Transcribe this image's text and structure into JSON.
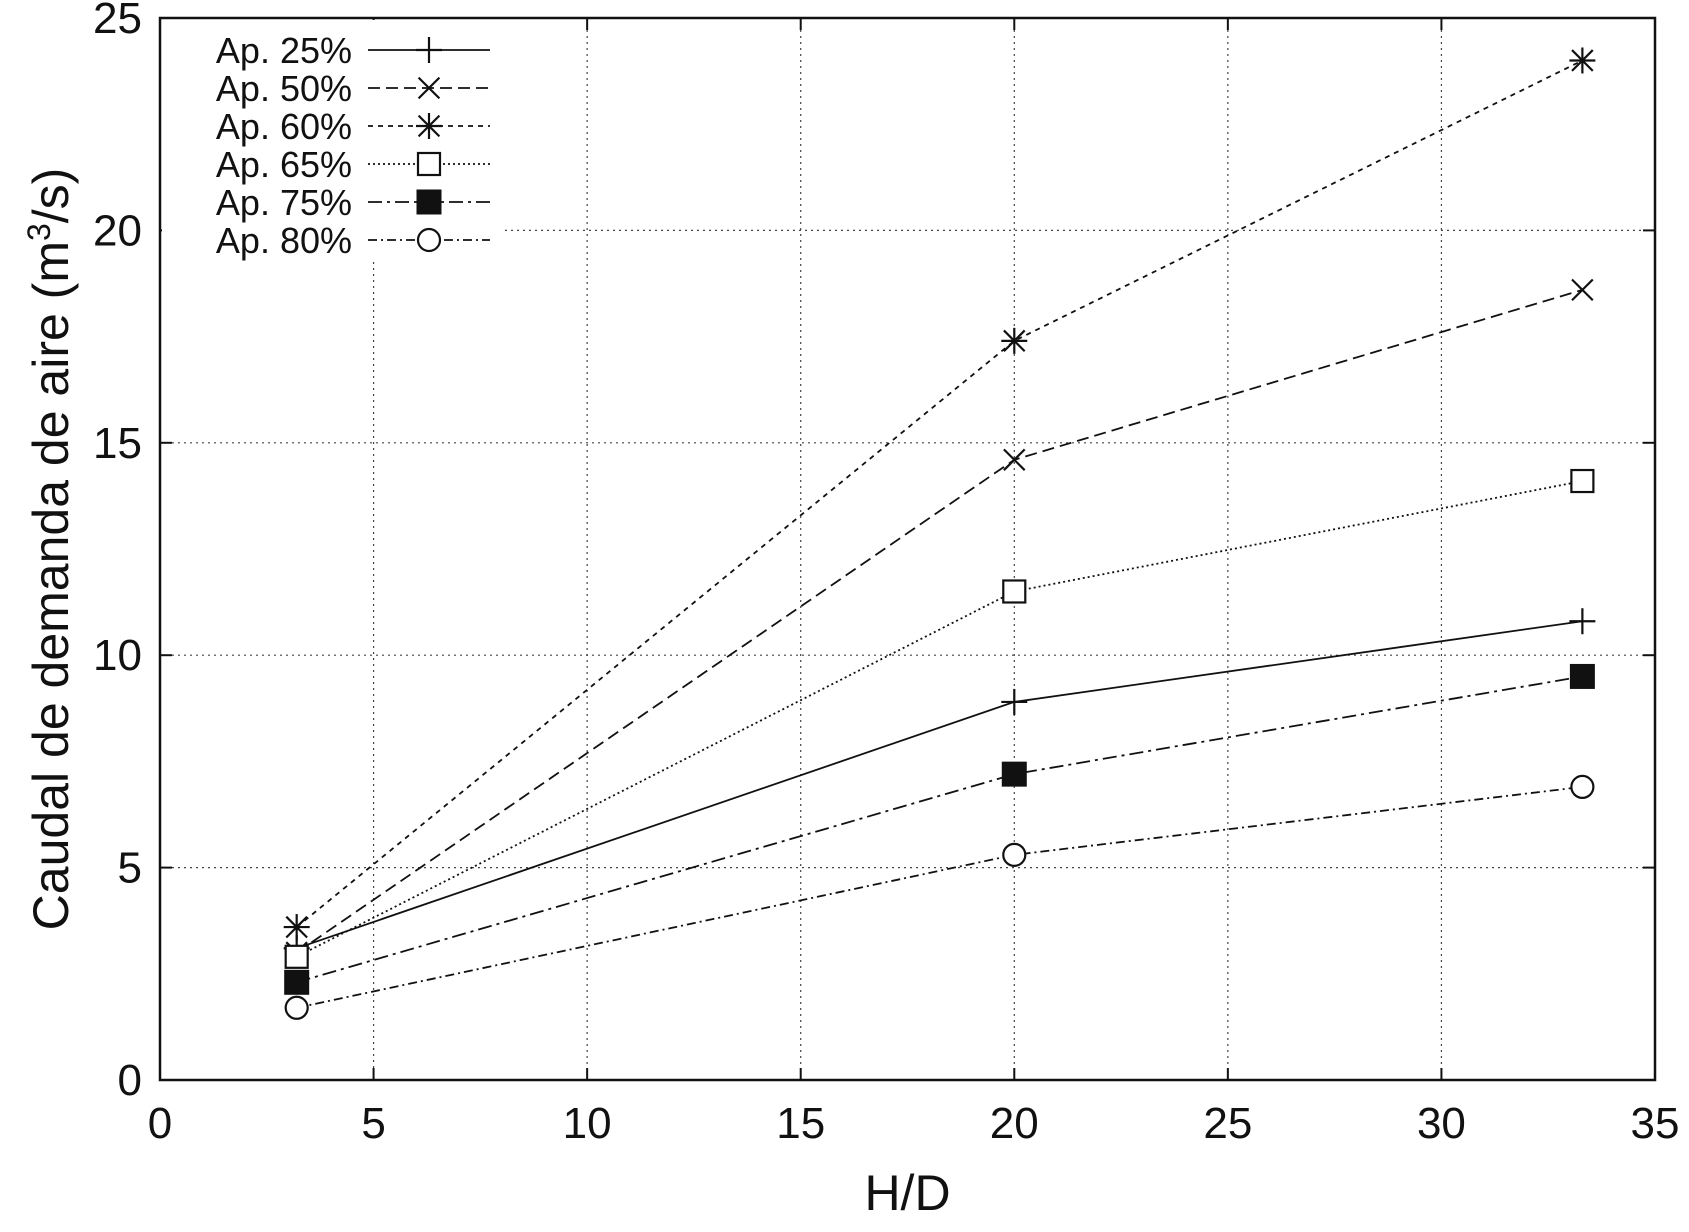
{
  "chart_data": {
    "type": "line",
    "title": "",
    "xlabel": "H/D",
    "ylabel_main": "Caudal de demanda de aire (m",
    "ylabel_sup": "3",
    "ylabel_tail": "/s)",
    "xlim": [
      0,
      35
    ],
    "ylim": [
      0,
      25
    ],
    "xticks": [
      0,
      5,
      10,
      15,
      20,
      25,
      30,
      35
    ],
    "yticks": [
      0,
      5,
      10,
      15,
      20,
      25
    ],
    "grid": true,
    "legend_position": "top-left",
    "x": [
      3.2,
      20,
      33.3
    ],
    "series": [
      {
        "name": "Ap. 25%",
        "marker": "plus",
        "dash": "none",
        "values": [
          3.1,
          8.9,
          10.8
        ]
      },
      {
        "name": "Ap. 50%",
        "marker": "cross",
        "dash": "12 6",
        "values": [
          3.0,
          14.6,
          18.6
        ]
      },
      {
        "name": "Ap. 60%",
        "marker": "star",
        "dash": "5 5",
        "values": [
          3.6,
          17.4,
          24.0
        ]
      },
      {
        "name": "Ap. 65%",
        "marker": "square-open",
        "dash": "2 3",
        "values": [
          2.9,
          11.5,
          14.1
        ]
      },
      {
        "name": "Ap. 75%",
        "marker": "square-filled",
        "dash": "14 5 3 5",
        "values": [
          2.3,
          7.2,
          9.5
        ]
      },
      {
        "name": "Ap. 80%",
        "marker": "circle-open",
        "dash": "9 4 2 4",
        "values": [
          1.7,
          5.3,
          6.9
        ]
      }
    ]
  }
}
